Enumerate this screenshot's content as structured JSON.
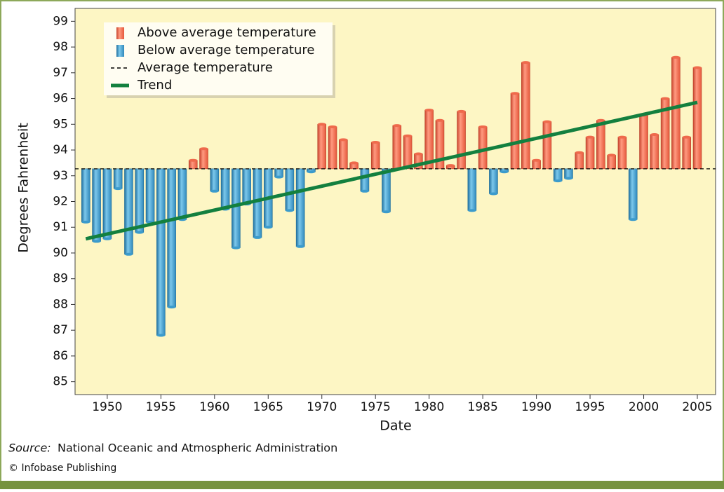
{
  "chart_data": {
    "type": "bar",
    "x_label": "Date",
    "y_label": "Degrees Fahrenheit",
    "x": [
      1948,
      1949,
      1950,
      1951,
      1952,
      1953,
      1954,
      1955,
      1956,
      1957,
      1958,
      1959,
      1960,
      1961,
      1962,
      1963,
      1964,
      1965,
      1966,
      1967,
      1968,
      1969,
      1970,
      1971,
      1972,
      1973,
      1974,
      1975,
      1976,
      1977,
      1978,
      1979,
      1980,
      1981,
      1982,
      1983,
      1984,
      1985,
      1986,
      1987,
      1988,
      1989,
      1990,
      1991,
      1992,
      1993,
      1994,
      1995,
      1996,
      1997,
      1998,
      1999,
      2000,
      2001,
      2002,
      2003,
      2004,
      2005
    ],
    "values": [
      91.2,
      90.45,
      90.55,
      92.5,
      89.95,
      90.8,
      91.2,
      86.8,
      87.9,
      91.3,
      93.6,
      94.05,
      92.4,
      91.7,
      90.2,
      91.9,
      90.6,
      91.0,
      92.95,
      91.65,
      90.25,
      93.15,
      95.0,
      94.9,
      94.4,
      93.5,
      92.4,
      94.3,
      91.6,
      94.95,
      94.55,
      93.85,
      95.55,
      95.15,
      93.4,
      95.5,
      91.65,
      94.9,
      92.3,
      93.15,
      96.2,
      97.4,
      93.6,
      95.1,
      92.8,
      92.9,
      93.9,
      94.5,
      95.15,
      93.8,
      94.5,
      91.3,
      95.35,
      94.6,
      96.0,
      97.6,
      94.5,
      97.2
    ],
    "above": {
      "name": "Above average temperature",
      "color": "#ef6a4c"
    },
    "below": {
      "name": "Below average temperature",
      "color": "#3b9bcc"
    },
    "average": {
      "name": "Average temperature",
      "value": 93.27,
      "color": "#000000"
    },
    "trend": {
      "name": "Trend",
      "color": "#13803f",
      "x": [
        1948,
        2005
      ],
      "values": [
        90.55,
        95.85
      ]
    },
    "xlim": [
      1947,
      2006.7
    ],
    "ylim": [
      84.5,
      99.5
    ],
    "xticks": [
      1950,
      1955,
      1960,
      1965,
      1970,
      1975,
      1980,
      1985,
      1990,
      1995,
      2000,
      2005
    ],
    "yticks": [
      85,
      86,
      87,
      88,
      89,
      90,
      91,
      92,
      93,
      94,
      95,
      96,
      97,
      98,
      99
    ],
    "legend": "upper left",
    "source_label": "Source:",
    "source": "National Oceanic and Atmospheric Administration",
    "credit": "© Infobase Publishing"
  }
}
